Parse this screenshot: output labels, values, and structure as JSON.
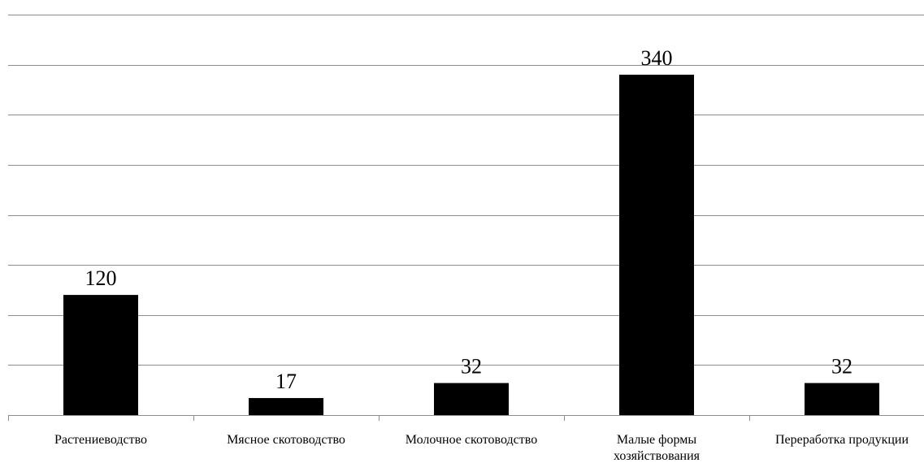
{
  "chart_data": {
    "type": "bar",
    "categories": [
      [
        "Растениеводство"
      ],
      [
        "Мясное скотоводство"
      ],
      [
        "Молочное скотоводство"
      ],
      [
        "Малые формы",
        "хозяйствования"
      ],
      [
        "Переработка продукции"
      ]
    ],
    "values": [
      120,
      17,
      32,
      340,
      32
    ],
    "data_labels": [
      "120",
      "17",
      "32",
      "340",
      "32"
    ],
    "ylim": [
      0,
      400
    ],
    "y_gridlines": [
      0,
      50,
      100,
      150,
      200,
      250,
      300,
      350,
      400
    ],
    "grid": true,
    "legend": "none",
    "title": "",
    "xlabel": "",
    "ylabel": "",
    "bar_color": "#000000",
    "grid_color": "#8c8c8c"
  }
}
